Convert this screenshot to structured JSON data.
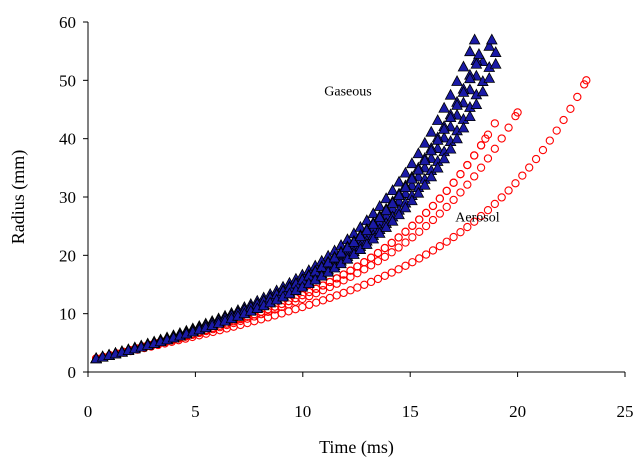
{
  "chart_data": {
    "type": "scatter",
    "xlabel": "Time (ms)",
    "ylabel": "Radius (mm)",
    "xlim": [
      0,
      25
    ],
    "ylim": [
      0,
      60
    ],
    "xticks": [
      "0",
      "5",
      "10",
      "15",
      "20",
      "25"
    ],
    "yticks": [
      "0",
      "10",
      "20",
      "30",
      "40",
      "50",
      "60"
    ],
    "grid": false,
    "legend": "none",
    "annotations": [
      {
        "text": "Gaseous",
        "series": "gaseous"
      },
      {
        "text": "Aerosol",
        "series": "aerosol"
      }
    ],
    "series": [
      {
        "id": "gaseous",
        "marker": "triangle",
        "fill": "#1a1aa6",
        "stroke": "#000000",
        "runs": [
          {
            "x_end": 18.0,
            "y_end": 57.0
          },
          {
            "x_end": 18.8,
            "y_end": 57.0
          },
          {
            "x_end": 18.2,
            "y_end": 54.5
          },
          {
            "x_end": 19.0,
            "y_end": 55.0
          },
          {
            "x_end": 18.1,
            "y_end": 53.0
          },
          {
            "x_end": 19.0,
            "y_end": 53.0
          }
        ]
      },
      {
        "id": "aerosol",
        "marker": "circle",
        "fill": "none",
        "stroke": "#ff0000",
        "runs": [
          {
            "x_end": 19.0,
            "y_end": 43.0
          },
          {
            "x_end": 20.0,
            "y_end": 44.5
          },
          {
            "x_end": 18.5,
            "y_end": 40.0
          },
          {
            "x_end": 23.2,
            "y_end": 50.0
          }
        ]
      }
    ]
  }
}
